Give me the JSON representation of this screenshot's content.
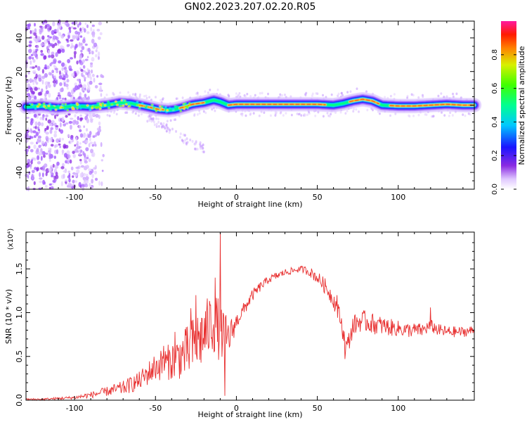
{
  "title": "GN02.2023.207.02.20.R05",
  "chart_data": [
    {
      "type": "heatmap",
      "xlabel": "Height of straight line (km)",
      "ylabel": "Frequency (Hz)",
      "xlim": [
        -130,
        147
      ],
      "ylim": [
        -50,
        50
      ],
      "xticks": [
        -100,
        -50,
        0,
        50,
        100
      ],
      "yticks": [
        -40,
        -20,
        0,
        20,
        40
      ],
      "colorbar": {
        "label": "Normalized spectral amplitude",
        "range": [
          0.0,
          1.0
        ],
        "ticks": [
          "0.0",
          "0.2",
          "0.4",
          "0.6",
          "0.8"
        ]
      },
      "ridge": [
        [
          -130,
          -1.0
        ],
        [
          -120,
          -0.5
        ],
        [
          -110,
          -1.5
        ],
        [
          -100,
          -0.5
        ],
        [
          -90,
          -1.0
        ],
        [
          -80,
          0.0
        ],
        [
          -72,
          1.5
        ],
        [
          -65,
          1.0
        ],
        [
          -60,
          0.0
        ],
        [
          -55,
          -1.0
        ],
        [
          -48,
          -2.5
        ],
        [
          -42,
          -3.0
        ],
        [
          -38,
          -2.5
        ],
        [
          -32,
          -1.0
        ],
        [
          -27,
          0.5
        ],
        [
          -20,
          1.5
        ],
        [
          -14,
          3.0
        ],
        [
          -10,
          2.0
        ],
        [
          -5,
          0.0
        ],
        [
          0,
          0.5
        ],
        [
          10,
          0.5
        ],
        [
          30,
          0.5
        ],
        [
          50,
          0.5
        ],
        [
          60,
          0.0
        ],
        [
          66,
          1.0
        ],
        [
          72,
          2.5
        ],
        [
          78,
          3.5
        ],
        [
          84,
          2.5
        ],
        [
          90,
          0.0
        ],
        [
          100,
          -0.5
        ],
        [
          110,
          -0.5
        ],
        [
          120,
          0.0
        ],
        [
          130,
          0.5
        ],
        [
          140,
          0.0
        ],
        [
          147,
          0.0
        ]
      ]
    },
    {
      "type": "line",
      "xlabel": "Height of straight line (km)",
      "ylabel": "SNR (10 * v/v)",
      "multiplier": "(x10⁴)",
      "xlim": [
        -130,
        147
      ],
      "ylim": [
        0,
        1.92
      ],
      "xticks": [
        -100,
        -50,
        0,
        50,
        100
      ],
      "yticks": [
        "0.0",
        "0.5",
        "1.0",
        "1.5"
      ],
      "color": "#e83030",
      "envelope": [
        [
          -130,
          0.01
        ],
        [
          -120,
          0.01
        ],
        [
          -110,
          0.02
        ],
        [
          -100,
          0.03
        ],
        [
          -90,
          0.06
        ],
        [
          -80,
          0.1
        ],
        [
          -70,
          0.14
        ],
        [
          -60,
          0.22
        ],
        [
          -50,
          0.38
        ],
        [
          -40,
          0.45
        ],
        [
          -30,
          0.55
        ],
        [
          -20,
          0.75
        ],
        [
          -15,
          0.9
        ],
        [
          -10,
          0.8
        ],
        [
          -5,
          0.7
        ],
        [
          0,
          0.9
        ],
        [
          5,
          1.05
        ],
        [
          10,
          1.2
        ],
        [
          15,
          1.3
        ],
        [
          20,
          1.38
        ],
        [
          25,
          1.42
        ],
        [
          30,
          1.46
        ],
        [
          35,
          1.48
        ],
        [
          40,
          1.5
        ],
        [
          45,
          1.47
        ],
        [
          50,
          1.4
        ],
        [
          55,
          1.3
        ],
        [
          60,
          1.15
        ],
        [
          64,
          0.95
        ],
        [
          68,
          0.6
        ],
        [
          70,
          0.7
        ],
        [
          72,
          0.85
        ],
        [
          76,
          0.9
        ],
        [
          80,
          0.9
        ],
        [
          85,
          0.87
        ],
        [
          90,
          0.85
        ],
        [
          95,
          0.83
        ],
        [
          100,
          0.82
        ],
        [
          105,
          0.8
        ],
        [
          110,
          0.8
        ],
        [
          115,
          0.8
        ],
        [
          120,
          0.85
        ],
        [
          125,
          0.8
        ],
        [
          130,
          0.78
        ],
        [
          135,
          0.78
        ],
        [
          140,
          0.78
        ],
        [
          147,
          0.8
        ]
      ],
      "noise": [
        [
          -130,
          0.005
        ],
        [
          -100,
          0.01
        ],
        [
          -80,
          0.03
        ],
        [
          -60,
          0.06
        ],
        [
          -40,
          0.12
        ],
        [
          -25,
          0.2
        ],
        [
          -10,
          0.2
        ],
        [
          0,
          0.05
        ],
        [
          20,
          0.025
        ],
        [
          40,
          0.02
        ],
        [
          55,
          0.05
        ],
        [
          65,
          0.06
        ],
        [
          80,
          0.07
        ],
        [
          100,
          0.05
        ],
        [
          147,
          0.03
        ]
      ],
      "spikes": [
        [
          -10,
          1.92
        ],
        [
          -7,
          0.05
        ],
        [
          -13,
          1.4
        ],
        [
          -25,
          1.2
        ],
        [
          -28,
          1.05
        ],
        [
          -45,
          0.62
        ],
        [
          -38,
          0.78
        ],
        [
          -65,
          0.25
        ],
        [
          67,
          0.47
        ],
        [
          62,
          1.2
        ],
        [
          120,
          1.06
        ],
        [
          55,
          1.3
        ]
      ]
    }
  ]
}
